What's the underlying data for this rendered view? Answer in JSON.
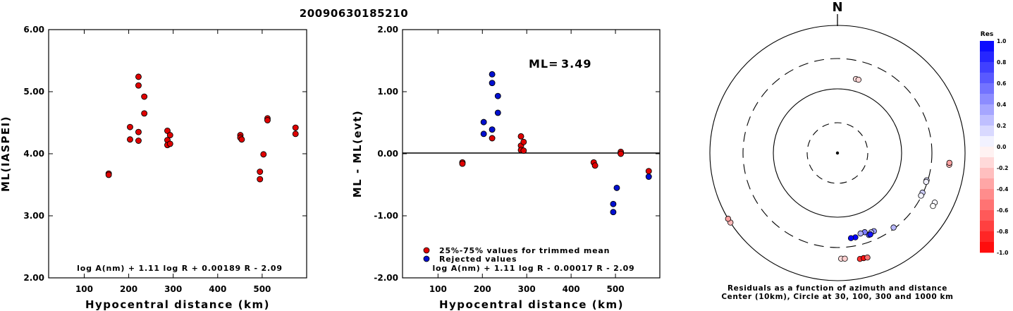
{
  "title": "20090630185210",
  "chart_data": [
    {
      "type": "scatter",
      "panel": "left",
      "xlabel": "Hypocentral distance (km)",
      "ylabel": "ML(IASPEI)",
      "xlim": [
        20,
        600
      ],
      "ylim": [
        2.0,
        6.0
      ],
      "xticks": [
        100,
        200,
        300,
        400,
        500
      ],
      "yticks": [
        "2.00",
        "3.00",
        "4.00",
        "5.00",
        "6.00"
      ],
      "formula": "log A(nm) + 1.11 log R + 0.00189 R - 2.09",
      "point_color": "#e00000",
      "points": [
        [
          155,
          3.68
        ],
        [
          155,
          3.66
        ],
        [
          203,
          4.43
        ],
        [
          203,
          4.23
        ],
        [
          222,
          5.24
        ],
        [
          222,
          5.1
        ],
        [
          222,
          4.35
        ],
        [
          222,
          4.21
        ],
        [
          235,
          4.92
        ],
        [
          235,
          4.65
        ],
        [
          287,
          4.37
        ],
        [
          287,
          4.22
        ],
        [
          287,
          4.14
        ],
        [
          293,
          4.3
        ],
        [
          293,
          4.16
        ],
        [
          451,
          4.3
        ],
        [
          451,
          4.26
        ],
        [
          454,
          4.23
        ],
        [
          495,
          3.71
        ],
        [
          495,
          3.59
        ],
        [
          503,
          3.99
        ],
        [
          512,
          4.57
        ],
        [
          512,
          4.54
        ],
        [
          575,
          4.42
        ],
        [
          575,
          4.32
        ]
      ]
    },
    {
      "type": "scatter",
      "panel": "middle",
      "xlabel": "Hypocentral distance (km)",
      "ylabel": "ML - ML(evt)",
      "xlim": [
        20,
        600
      ],
      "ylim": [
        -2.0,
        2.0
      ],
      "xticks": [
        100,
        200,
        300,
        400,
        500
      ],
      "yticks": [
        "-2.00",
        "-1.00",
        "0.00",
        "1.00",
        "2.00"
      ],
      "ml_label": "ML=",
      "ml_value": "3.49",
      "formula": "log A(nm) + 1.11 log R - 0.00017 R - 2.09",
      "legend": [
        "25%-75% values for trimmed mean",
        "Rejected values"
      ],
      "series": [
        {
          "name": "25%-75% values for trimmed mean",
          "color": "#e00000",
          "points": [
            [
              155,
              -0.14
            ],
            [
              155,
              -0.16
            ],
            [
              222,
              0.25
            ],
            [
              287,
              0.28
            ],
            [
              287,
              0.13
            ],
            [
              287,
              0.06
            ],
            [
              293,
              0.19
            ],
            [
              293,
              0.05
            ],
            [
              451,
              -0.14
            ],
            [
              454,
              -0.19
            ],
            [
              512,
              0.03
            ],
            [
              512,
              0.0
            ],
            [
              575,
              -0.28
            ]
          ]
        },
        {
          "name": "Rejected values",
          "color": "#0010d0",
          "points": [
            [
              203,
              0.51
            ],
            [
              203,
              0.32
            ],
            [
              222,
              1.28
            ],
            [
              222,
              1.14
            ],
            [
              222,
              0.39
            ],
            [
              235,
              0.93
            ],
            [
              235,
              0.66
            ],
            [
              495,
              -0.81
            ],
            [
              495,
              -0.94
            ],
            [
              503,
              -0.55
            ],
            [
              575,
              -0.37
            ]
          ]
        }
      ]
    },
    {
      "type": "polar-scatter",
      "panel": "right",
      "north_label": "N",
      "caption_line1": "Residuals as a function of azimuth and distance",
      "caption_line2": "Center (10km), Circle at 30, 100, 300 and 1000 km",
      "rings_km": [
        30,
        100,
        300,
        1000
      ],
      "points": [
        {
          "az": 14,
          "dist": 155,
          "res": -0.14
        },
        {
          "az": 16,
          "dist": 155,
          "res": -0.16
        },
        {
          "az": 96,
          "dist": 575,
          "res": -0.28
        },
        {
          "az": 95,
          "dist": 575,
          "res": -0.37
        },
        {
          "az": 107,
          "dist": 287,
          "res": 0.13
        },
        {
          "az": 108,
          "dist": 287,
          "res": 0.06
        },
        {
          "az": 115,
          "dist": 293,
          "res": 0.19
        },
        {
          "az": 117,
          "dist": 293,
          "res": 0.05
        },
        {
          "az": 117,
          "dist": 512,
          "res": 0.03
        },
        {
          "az": 119,
          "dist": 512,
          "res": 0.0
        },
        {
          "az": 143,
          "dist": 287,
          "res": 0.28
        },
        {
          "az": 155,
          "dist": 222,
          "res": 0.39
        },
        {
          "az": 157,
          "dist": 222,
          "res": 0.25
        },
        {
          "az": 159,
          "dist": 235,
          "res": 0.66
        },
        {
          "az": 158,
          "dist": 235,
          "res": 0.93
        },
        {
          "az": 161,
          "dist": 203,
          "res": 0.51
        },
        {
          "az": 164,
          "dist": 203,
          "res": 0.32
        },
        {
          "az": 168,
          "dist": 222,
          "res": 1.28
        },
        {
          "az": 171,
          "dist": 222,
          "res": 1.14
        },
        {
          "az": 178,
          "dist": 451,
          "res": -0.14
        },
        {
          "az": 176,
          "dist": 454,
          "res": -0.19
        },
        {
          "az": 168,
          "dist": 495,
          "res": -0.81
        },
        {
          "az": 166,
          "dist": 495,
          "res": -0.94
        },
        {
          "az": 164,
          "dist": 503,
          "res": -0.55
        },
        {
          "az": 237,
          "dist": 1000,
          "res": -0.28
        },
        {
          "az": 239,
          "dist": 1000,
          "res": -0.37
        }
      ]
    }
  ],
  "colorbar": {
    "title": "Res",
    "ticks": [
      "1.0",
      "0.8",
      "0.6",
      "0.4",
      "0.2",
      "0.0",
      "-0.2",
      "-0.4",
      "-0.6",
      "-0.8",
      "-1.0"
    ]
  }
}
